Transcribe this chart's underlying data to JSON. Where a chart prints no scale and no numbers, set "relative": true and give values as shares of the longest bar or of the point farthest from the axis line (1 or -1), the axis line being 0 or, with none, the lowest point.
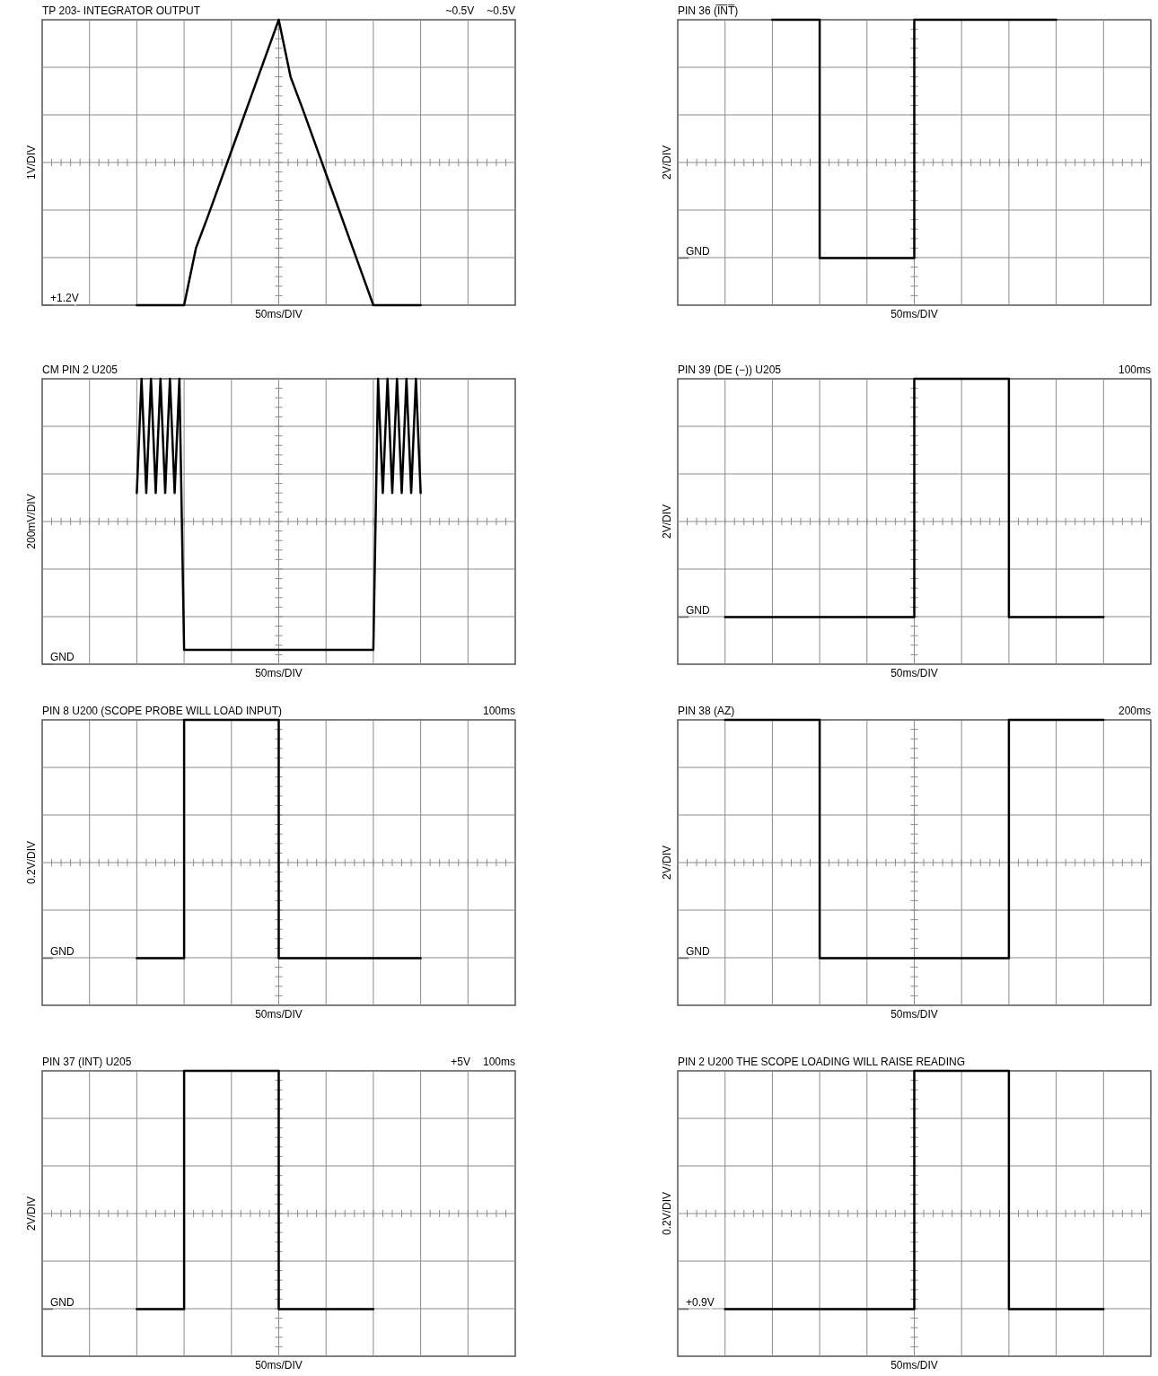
{
  "chart_data": [
    {
      "type": "line",
      "title": "TP 203- INTEGRATOR OUTPUT",
      "xlabel": "50ms/DIV",
      "ylabel": "1V/DIV",
      "relative": true,
      "grid": true,
      "color": "#000000",
      "categories": [
        null,
        null,
        null,
        null,
        null,
        null,
        null,
        null,
        null,
        null,
        null,
        null,
        null,
        null,
        null,
        null,
        null,
        null,
        null,
        null,
        null,
        null,
        null,
        null,
        null,
        null,
        null,
        null,
        null,
        null,
        null,
        null,
        null,
        null,
        null,
        null,
        null,
        null,
        null,
        null,
        null
      ],
      "values": [
        null,
        null,
        null,
        null,
        null,
        null,
        null,
        null,
        -1,
        -1,
        -1,
        -1,
        -1,
        -0.6,
        -0.38,
        -0.15,
        0.08,
        0.31,
        0.54,
        0.77,
        1,
        0.6,
        0.38,
        0.15,
        -0.08,
        -0.31,
        -0.54,
        -0.77,
        -1,
        -1,
        -1,
        -1,
        -1,
        null,
        null,
        null,
        null,
        null,
        null,
        null,
        null
      ],
      "ref_lines": [
        {
          "axis": "y",
          "value": -1,
          "label": "+1.2V",
          "color": "#666666"
        }
      ],
      "annotations": [
        "~0.5V",
        "~0.5V"
      ]
    },
    {
      "type": "step",
      "title": "PIN 36 (I̅N̅T̅)",
      "xlabel": "50ms/DIV",
      "ylabel": "2V/DIV",
      "relative": true,
      "grid": true,
      "color": "#000000",
      "categories": [
        null,
        null,
        null,
        null,
        null,
        null,
        null,
        null,
        null,
        null,
        null,
        null,
        null,
        null,
        null,
        null,
        null,
        null,
        null,
        null,
        null
      ],
      "values": [
        null,
        null,
        null,
        null,
        1,
        1,
        -0.67,
        -0.67,
        -0.67,
        -0.67,
        1,
        1,
        1,
        1,
        1,
        1,
        1,
        null,
        null,
        null,
        null
      ],
      "ref_lines": [
        {
          "axis": "y",
          "value": -0.67,
          "label": "GND",
          "color": "#666666"
        }
      ]
    },
    {
      "type": "line",
      "title": "CM PIN 2 U205",
      "xlabel": "50ms/DIV",
      "ylabel": "200mV/DIV",
      "relative": true,
      "grid": true,
      "color": "#000000",
      "categories": [
        null,
        null,
        null,
        null,
        null,
        null,
        null,
        null,
        null,
        null,
        null,
        null,
        null,
        null,
        null,
        null,
        null,
        null,
        null,
        null,
        null,
        null,
        null,
        null,
        null,
        null,
        null,
        null,
        null,
        null,
        null,
        null,
        null,
        null,
        null,
        null,
        null,
        null,
        null,
        null,
        null,
        null,
        null,
        null,
        null,
        null,
        null,
        null,
        null,
        null,
        null,
        null,
        null,
        null,
        null,
        null,
        null,
        null,
        null,
        null,
        null,
        null,
        null,
        null,
        null,
        null,
        null,
        null,
        null,
        null,
        null,
        null,
        null,
        null,
        null,
        null,
        null,
        null,
        null,
        null,
        null,
        null,
        null,
        null,
        null,
        null,
        null,
        null,
        null,
        null,
        null,
        null,
        null,
        null,
        null,
        null,
        null,
        null,
        null,
        null,
        null
      ],
      "values": [
        null,
        null,
        null,
        null,
        null,
        null,
        null,
        null,
        null,
        null,
        null,
        null,
        null,
        null,
        null,
        null,
        null,
        null,
        null,
        null,
        0.2,
        1,
        0.2,
        1,
        0.2,
        1,
        0.2,
        1,
        0.2,
        1,
        -0.9,
        -0.9,
        -0.9,
        -0.9,
        -0.9,
        -0.9,
        -0.9,
        -0.9,
        -0.9,
        -0.9,
        -0.9,
        -0.9,
        -0.9,
        -0.9,
        -0.9,
        -0.9,
        -0.9,
        -0.9,
        -0.9,
        -0.9,
        -0.9,
        -0.9,
        -0.9,
        -0.9,
        -0.9,
        -0.9,
        -0.9,
        -0.9,
        -0.9,
        -0.9,
        -0.9,
        -0.9,
        -0.9,
        -0.9,
        -0.9,
        -0.9,
        -0.9,
        -0.9,
        -0.9,
        -0.9,
        -0.9,
        1,
        0.2,
        1,
        0.2,
        1,
        0.2,
        1,
        0.2,
        1,
        0.2,
        null,
        null,
        null,
        null,
        null,
        null,
        null,
        null,
        null,
        null,
        null,
        null,
        null,
        null,
        null,
        null,
        null,
        null,
        null,
        null
      ],
      "ref_lines": [
        {
          "axis": "y",
          "value": -1,
          "label": "GND",
          "color": "#666666"
        }
      ]
    },
    {
      "type": "step",
      "title": "PIN 39 (DE (−)) U205",
      "xlabel": "50ms/DIV",
      "ylabel": "2V/DIV",
      "relative": true,
      "grid": true,
      "color": "#000000",
      "categories": [
        null,
        null,
        null,
        null,
        null,
        null,
        null,
        null,
        null,
        null,
        null,
        null,
        null,
        null,
        null,
        null,
        null,
        null,
        null,
        null,
        null
      ],
      "values": [
        null,
        null,
        -0.67,
        -0.67,
        -0.67,
        -0.67,
        -0.67,
        -0.67,
        -0.67,
        -0.67,
        1,
        1,
        1,
        1,
        -0.67,
        -0.67,
        -0.67,
        -0.67,
        -0.67,
        null,
        null
      ],
      "ref_lines": [
        {
          "axis": "y",
          "value": -0.67,
          "label": "GND",
          "color": "#666666"
        }
      ],
      "annotations": [
        "100ms"
      ]
    },
    {
      "type": "step",
      "title": "PIN 8 U200 (SCOPE PROBE WILL LOAD INPUT)",
      "xlabel": "50ms/DIV",
      "ylabel": "0.2V/DIV",
      "relative": true,
      "grid": true,
      "color": "#000000",
      "categories": [
        null,
        null,
        null,
        null,
        null,
        null,
        null,
        null,
        null,
        null,
        null,
        null,
        null,
        null,
        null,
        null,
        null,
        null,
        null,
        null,
        null
      ],
      "values": [
        null,
        null,
        null,
        null,
        -0.67,
        -0.67,
        1,
        1,
        1,
        1,
        -0.67,
        -0.67,
        -0.67,
        -0.67,
        -0.67,
        -0.67,
        -0.67,
        null,
        null,
        null,
        null
      ],
      "ref_lines": [
        {
          "axis": "y",
          "value": -0.67,
          "label": "GND",
          "color": "#666666"
        }
      ],
      "annotations": [
        "100ms"
      ]
    },
    {
      "type": "step",
      "title": "PIN 38 (AZ)",
      "xlabel": "50ms/DIV",
      "ylabel": "2V/DIV",
      "relative": true,
      "grid": true,
      "color": "#000000",
      "categories": [
        null,
        null,
        null,
        null,
        null,
        null,
        null,
        null,
        null,
        null,
        null,
        null,
        null,
        null,
        null,
        null,
        null,
        null,
        null,
        null,
        null
      ],
      "values": [
        null,
        null,
        1,
        1,
        1,
        1,
        -0.67,
        -0.67,
        -0.67,
        -0.67,
        -0.67,
        -0.67,
        -0.67,
        -0.67,
        1,
        1,
        1,
        1,
        1,
        null,
        null
      ],
      "ref_lines": [
        {
          "axis": "y",
          "value": -0.67,
          "label": "GND",
          "color": "#666666"
        }
      ],
      "annotations": [
        "200ms"
      ]
    },
    {
      "type": "step",
      "title": "PIN 37 (INT) U205",
      "xlabel": "50ms/DIV",
      "ylabel": "2V/DIV",
      "relative": true,
      "grid": true,
      "color": "#000000",
      "categories": [
        null,
        null,
        null,
        null,
        null,
        null,
        null,
        null,
        null,
        null,
        null,
        null,
        null,
        null,
        null,
        null,
        null,
        null,
        null,
        null,
        null
      ],
      "values": [
        null,
        null,
        null,
        null,
        -0.67,
        -0.67,
        1,
        1,
        1,
        1,
        -0.67,
        -0.67,
        -0.67,
        -0.67,
        -0.67,
        null,
        null,
        null,
        null,
        null,
        null
      ],
      "ref_lines": [
        {
          "axis": "y",
          "value": -0.67,
          "label": "GND",
          "color": "#666666"
        }
      ],
      "annotations": [
        "+5V",
        "100ms"
      ]
    },
    {
      "type": "step",
      "title": "PIN 2 U200 THE SCOPE LOADING WILL RAISE READING",
      "xlabel": "50ms/DIV",
      "ylabel": "0.2V/DIV",
      "relative": true,
      "grid": true,
      "color": "#000000",
      "categories": [
        null,
        null,
        null,
        null,
        null,
        null,
        null,
        null,
        null,
        null,
        null,
        null,
        null,
        null,
        null,
        null,
        null,
        null,
        null,
        null,
        null
      ],
      "values": [
        null,
        null,
        -0.67,
        -0.67,
        -0.67,
        -0.67,
        -0.67,
        -0.67,
        -0.67,
        -0.67,
        1,
        1,
        1,
        1,
        -0.67,
        -0.67,
        -0.67,
        -0.67,
        -0.67,
        null,
        null
      ],
      "ref_lines": [
        {
          "axis": "y",
          "value": -0.67,
          "label": "+0.9V",
          "color": "#666666"
        }
      ]
    }
  ]
}
